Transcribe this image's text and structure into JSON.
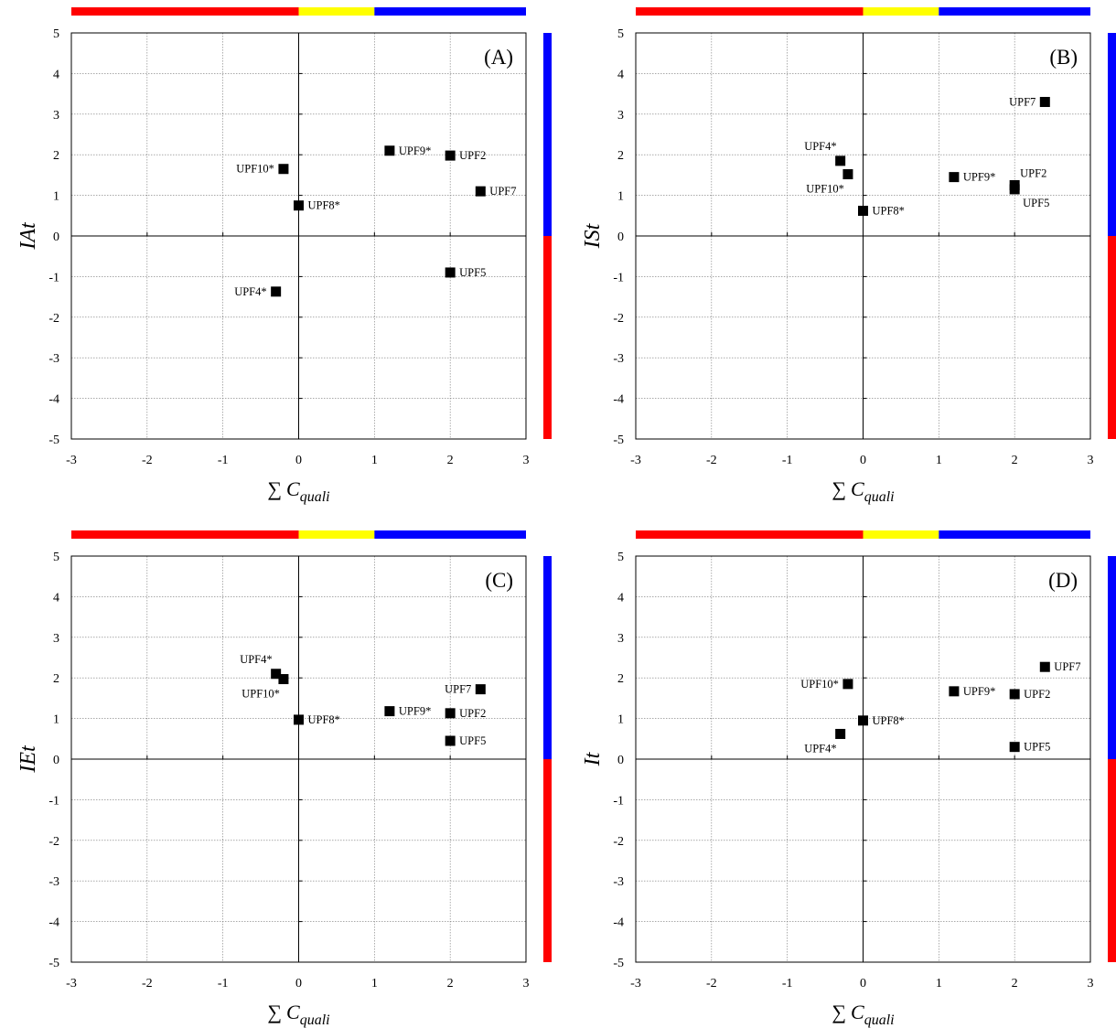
{
  "colors": {
    "red": "#ff0000",
    "yellow": "#ffff00",
    "blue": "#0000ff",
    "marker": "#000000",
    "grid": "#777777"
  },
  "chart_data": [
    {
      "type": "scatter",
      "panel": "(A)",
      "ylabel": "IAt",
      "xlabel_sum": "∑",
      "xlabel_var": "C",
      "xlabel_sub": "quali",
      "xlim": [
        -3,
        3
      ],
      "ylim": [
        -5,
        5
      ],
      "xticks": [
        "-3",
        "-2",
        "-1",
        "0",
        "1",
        "2",
        "3"
      ],
      "yticks": [
        "5",
        "4",
        "3",
        "2",
        "1",
        "0",
        "-1",
        "-2",
        "-3",
        "-4",
        "-5"
      ],
      "grid": true,
      "color_bars": {
        "top": [
          {
            "color": "red",
            "from": -3,
            "to": 0
          },
          {
            "color": "yellow",
            "from": 0,
            "to": 1
          },
          {
            "color": "blue",
            "from": 1,
            "to": 3
          }
        ],
        "right": [
          {
            "color": "blue",
            "from": 0,
            "to": 5
          },
          {
            "color": "red",
            "from": -5,
            "to": 0
          }
        ]
      },
      "points": [
        {
          "label": "UPF10*",
          "x": -0.2,
          "y": 1.65,
          "pos": "left"
        },
        {
          "label": "UPF9*",
          "x": 1.2,
          "y": 2.1,
          "pos": "right"
        },
        {
          "label": "UPF2",
          "x": 2.0,
          "y": 1.98,
          "pos": "right"
        },
        {
          "label": "UPF7",
          "x": 2.4,
          "y": 1.1,
          "pos": "right"
        },
        {
          "label": "UPF8*",
          "x": 0.0,
          "y": 0.75,
          "pos": "right"
        },
        {
          "label": "UPF5",
          "x": 2.0,
          "y": -0.9,
          "pos": "right"
        },
        {
          "label": "UPF4*",
          "x": -0.3,
          "y": -1.37,
          "pos": "left"
        }
      ]
    },
    {
      "type": "scatter",
      "panel": "(B)",
      "ylabel": "ISt",
      "xlabel_sum": "∑",
      "xlabel_var": "C",
      "xlabel_sub": "quali",
      "xlim": [
        -3,
        3
      ],
      "ylim": [
        -5,
        5
      ],
      "xticks": [
        "-3",
        "-2",
        "-1",
        "0",
        "1",
        "2",
        "3"
      ],
      "yticks": [
        "5",
        "4",
        "3",
        "2",
        "1",
        "0",
        "-1",
        "-2",
        "-3",
        "-4",
        "-5"
      ],
      "grid": true,
      "color_bars": {
        "top": [
          {
            "color": "red",
            "from": -3,
            "to": 0
          },
          {
            "color": "yellow",
            "from": 0,
            "to": 1
          },
          {
            "color": "blue",
            "from": 1,
            "to": 3
          }
        ],
        "right": [
          {
            "color": "blue",
            "from": 0,
            "to": 5
          },
          {
            "color": "red",
            "from": -5,
            "to": 0
          }
        ]
      },
      "points": [
        {
          "label": "UPF7",
          "x": 2.4,
          "y": 3.3,
          "pos": "left"
        },
        {
          "label": "UPF4*",
          "x": -0.3,
          "y": 1.85,
          "pos": "above-left"
        },
        {
          "label": "UPF10*",
          "x": -0.2,
          "y": 1.52,
          "pos": "below-left"
        },
        {
          "label": "UPF9*",
          "x": 1.2,
          "y": 1.45,
          "pos": "right"
        },
        {
          "label": "UPF2",
          "x": 2.0,
          "y": 1.25,
          "pos": "above-right"
        },
        {
          "label": "UPF5",
          "x": 2.0,
          "y": 1.15,
          "pos": "below-right"
        },
        {
          "label": "UPF8*",
          "x": 0.0,
          "y": 0.62,
          "pos": "right"
        }
      ]
    },
    {
      "type": "scatter",
      "panel": "(C)",
      "ylabel": "IEt",
      "xlabel_sum": "∑",
      "xlabel_var": "C",
      "xlabel_sub": "quali",
      "xlim": [
        -3,
        3
      ],
      "ylim": [
        -5,
        5
      ],
      "xticks": [
        "-3",
        "-2",
        "-1",
        "0",
        "1",
        "2",
        "3"
      ],
      "yticks": [
        "5",
        "4",
        "3",
        "2",
        "1",
        "0",
        "-1",
        "-2",
        "-3",
        "-4",
        "-5"
      ],
      "grid": true,
      "color_bars": {
        "top": [
          {
            "color": "red",
            "from": -3,
            "to": 0
          },
          {
            "color": "yellow",
            "from": 0,
            "to": 1
          },
          {
            "color": "blue",
            "from": 1,
            "to": 3
          }
        ],
        "right": [
          {
            "color": "blue",
            "from": 0,
            "to": 5
          },
          {
            "color": "red",
            "from": -5,
            "to": 0
          }
        ]
      },
      "points": [
        {
          "label": "UPF4*",
          "x": -0.3,
          "y": 2.1,
          "pos": "above-left"
        },
        {
          "label": "UPF10*",
          "x": -0.2,
          "y": 1.97,
          "pos": "below-left"
        },
        {
          "label": "UPF7",
          "x": 2.4,
          "y": 1.72,
          "pos": "left"
        },
        {
          "label": "UPF9*",
          "x": 1.2,
          "y": 1.18,
          "pos": "right"
        },
        {
          "label": "UPF2",
          "x": 2.0,
          "y": 1.13,
          "pos": "right"
        },
        {
          "label": "UPF8*",
          "x": 0.0,
          "y": 0.97,
          "pos": "right"
        },
        {
          "label": "UPF5",
          "x": 2.0,
          "y": 0.45,
          "pos": "right"
        }
      ]
    },
    {
      "type": "scatter",
      "panel": "(D)",
      "ylabel": "It",
      "xlabel_sum": "∑",
      "xlabel_var": "C",
      "xlabel_sub": "quali",
      "xlim": [
        -3,
        3
      ],
      "ylim": [
        -5,
        5
      ],
      "xticks": [
        "-3",
        "-2",
        "-1",
        "0",
        "1",
        "2",
        "3"
      ],
      "yticks": [
        "5",
        "4",
        "3",
        "2",
        "1",
        "0",
        "-1",
        "-2",
        "-3",
        "-4",
        "-5"
      ],
      "grid": true,
      "color_bars": {
        "top": [
          {
            "color": "red",
            "from": -3,
            "to": 0
          },
          {
            "color": "yellow",
            "from": 0,
            "to": 1
          },
          {
            "color": "blue",
            "from": 1,
            "to": 3
          }
        ],
        "right": [
          {
            "color": "blue",
            "from": 0,
            "to": 5
          },
          {
            "color": "red",
            "from": -5,
            "to": 0
          }
        ]
      },
      "points": [
        {
          "label": "UPF7",
          "x": 2.4,
          "y": 2.27,
          "pos": "right"
        },
        {
          "label": "UPF10*",
          "x": -0.2,
          "y": 1.85,
          "pos": "left"
        },
        {
          "label": "UPF9*",
          "x": 1.2,
          "y": 1.67,
          "pos": "right"
        },
        {
          "label": "UPF2",
          "x": 2.0,
          "y": 1.6,
          "pos": "right"
        },
        {
          "label": "UPF8*",
          "x": 0.0,
          "y": 0.95,
          "pos": "right"
        },
        {
          "label": "UPF4*",
          "x": -0.3,
          "y": 0.62,
          "pos": "below-left"
        },
        {
          "label": "UPF5",
          "x": 2.0,
          "y": 0.3,
          "pos": "right"
        }
      ]
    }
  ]
}
